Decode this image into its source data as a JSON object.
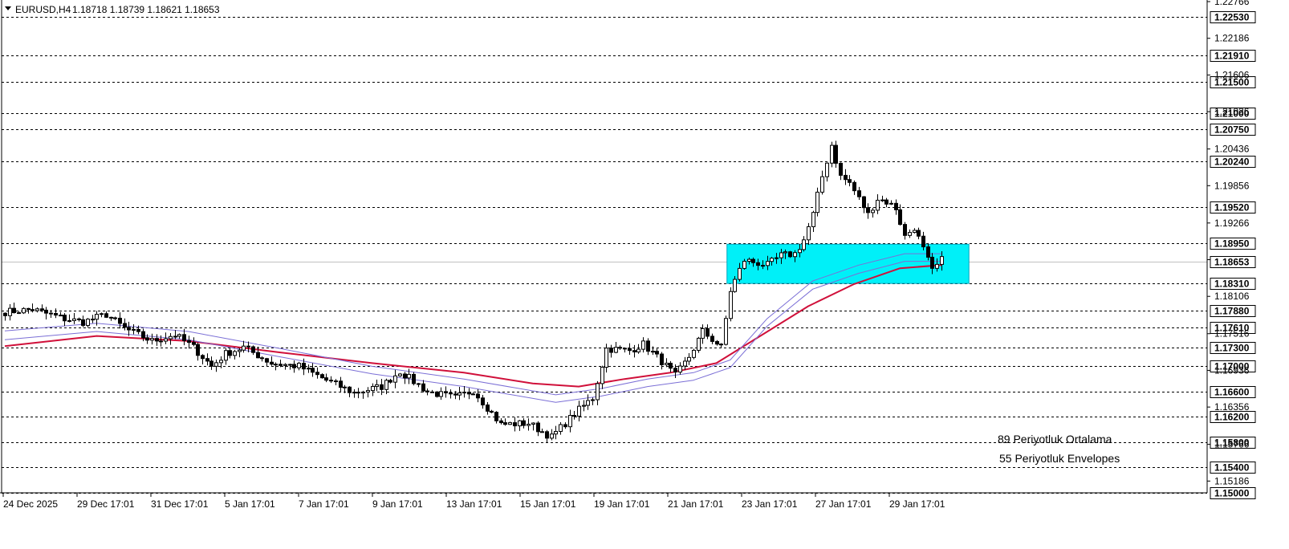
{
  "header": {
    "symbol": "EURUSD,H4",
    "ohlc": "1.18718 1.18739 1.18621 1.18653"
  },
  "legend": {
    "ma_label": "89 Periyotluk Ortalama",
    "env_label": "55 Periyotluk Envelopes"
  },
  "colors": {
    "bull_body": "#ffffff",
    "bear_body": "#000000",
    "ma_line": "#d0103a",
    "envelope_line": "#7b6fd6",
    "zone_fill": "#00f0f8",
    "grid": "#000000"
  },
  "chart_data": {
    "type": "candlestick",
    "ylim": [
      1.15,
      1.22766
    ],
    "y_ticks": [
      "1.22766",
      "1.22186",
      "1.21606",
      "1.21026",
      "1.20436",
      "1.19856",
      "1.19266",
      "1.18686",
      "1.18106",
      "1.17516",
      "1.16936",
      "1.16356",
      "1.15766",
      "1.15186"
    ],
    "price_levels": [
      "1.22530",
      "1.21910",
      "1.21500",
      "1.21000",
      "1.20750",
      "1.20240",
      "1.19520",
      "1.18950",
      "1.18310",
      "1.17880",
      "1.17610",
      "1.17300",
      "1.17000",
      "1.16600",
      "1.16200",
      "1.15800",
      "1.15400",
      "1.15000"
    ],
    "current_price": "1.18653",
    "x_labels": [
      "24 Dec 2025",
      "29 Dec 17:01",
      "31 Dec 17:01",
      "5 Jan 17:01",
      "7 Jan 17:01",
      "9 Jan 17:01",
      "13 Jan 17:01",
      "15 Jan 17:01",
      "19 Jan 17:01",
      "21 Jan 17:01",
      "23 Jan 17:01",
      "27 Jan 17:01",
      "29 Jan 17:01"
    ],
    "zone": {
      "y_top": 1.1893,
      "y_bottom": 1.1831,
      "from_bar": 158,
      "to_bar": 210
    },
    "anchors": [
      [
        0,
        1.1786
      ],
      [
        6,
        1.179
      ],
      [
        13,
        1.1775
      ],
      [
        17,
        1.177
      ],
      [
        22,
        1.1782
      ],
      [
        26,
        1.176
      ],
      [
        32,
        1.174
      ],
      [
        37,
        1.175
      ],
      [
        41,
        1.173
      ],
      [
        45,
        1.17
      ],
      [
        48,
        1.172
      ],
      [
        52,
        1.173
      ],
      [
        58,
        1.1705
      ],
      [
        64,
        1.17
      ],
      [
        70,
        1.1678
      ],
      [
        76,
        1.1658
      ],
      [
        82,
        1.1668
      ],
      [
        86,
        1.1692
      ],
      [
        92,
        1.166
      ],
      [
        98,
        1.165
      ],
      [
        102,
        1.1662
      ],
      [
        108,
        1.1608
      ],
      [
        114,
        1.161
      ],
      [
        119,
        1.1588
      ],
      [
        124,
        1.1625
      ],
      [
        128,
        1.165
      ],
      [
        131,
        1.1728
      ],
      [
        136,
        1.1725
      ],
      [
        139,
        1.1735
      ],
      [
        143,
        1.1708
      ],
      [
        146,
        1.1685
      ],
      [
        149,
        1.1715
      ],
      [
        152,
        1.1755
      ],
      [
        156,
        1.173
      ],
      [
        158,
        1.182
      ],
      [
        161,
        1.1868
      ],
      [
        166,
        1.186
      ],
      [
        169,
        1.1875
      ],
      [
        172,
        1.1878
      ],
      [
        174,
        1.19
      ],
      [
        176,
        1.194
      ],
      [
        178,
        1.2
      ],
      [
        180,
        1.205
      ],
      [
        182,
        1.2
      ],
      [
        184,
        1.199
      ],
      [
        186,
        1.1965
      ],
      [
        188,
        1.194
      ],
      [
        190,
        1.1965
      ],
      [
        192,
        1.196
      ],
      [
        194,
        1.195
      ],
      [
        196,
        1.1905
      ],
      [
        198,
        1.192
      ],
      [
        200,
        1.1885
      ],
      [
        202,
        1.185
      ],
      [
        204,
        1.1868
      ]
    ],
    "ma_points": [
      [
        0,
        1.1732
      ],
      [
        20,
        1.1748
      ],
      [
        40,
        1.174
      ],
      [
        60,
        1.1722
      ],
      [
        80,
        1.1705
      ],
      [
        100,
        1.169
      ],
      [
        115,
        1.1673
      ],
      [
        125,
        1.1668
      ],
      [
        135,
        1.168
      ],
      [
        145,
        1.169
      ],
      [
        155,
        1.1705
      ],
      [
        165,
        1.175
      ],
      [
        175,
        1.1795
      ],
      [
        185,
        1.183
      ],
      [
        195,
        1.1855
      ],
      [
        204,
        1.186
      ]
    ],
    "env_upper_points": [
      [
        0,
        1.1756
      ],
      [
        20,
        1.1768
      ],
      [
        40,
        1.1755
      ],
      [
        60,
        1.1728
      ],
      [
        80,
        1.17
      ],
      [
        100,
        1.168
      ],
      [
        120,
        1.1655
      ],
      [
        130,
        1.1665
      ],
      [
        140,
        1.168
      ],
      [
        150,
        1.169
      ],
      [
        158,
        1.171
      ],
      [
        166,
        1.1775
      ],
      [
        176,
        1.1835
      ],
      [
        186,
        1.186
      ],
      [
        196,
        1.1878
      ],
      [
        204,
        1.1878
      ]
    ],
    "env_lower_points": [
      [
        0,
        1.1742
      ],
      [
        20,
        1.1755
      ],
      [
        40,
        1.1742
      ],
      [
        60,
        1.1715
      ],
      [
        80,
        1.1688
      ],
      [
        100,
        1.1668
      ],
      [
        120,
        1.1643
      ],
      [
        130,
        1.1653
      ],
      [
        140,
        1.1668
      ],
      [
        150,
        1.1678
      ],
      [
        158,
        1.1698
      ],
      [
        166,
        1.1763
      ],
      [
        176,
        1.1822
      ],
      [
        186,
        1.1847
      ],
      [
        196,
        1.1866
      ],
      [
        204,
        1.1866
      ]
    ]
  }
}
